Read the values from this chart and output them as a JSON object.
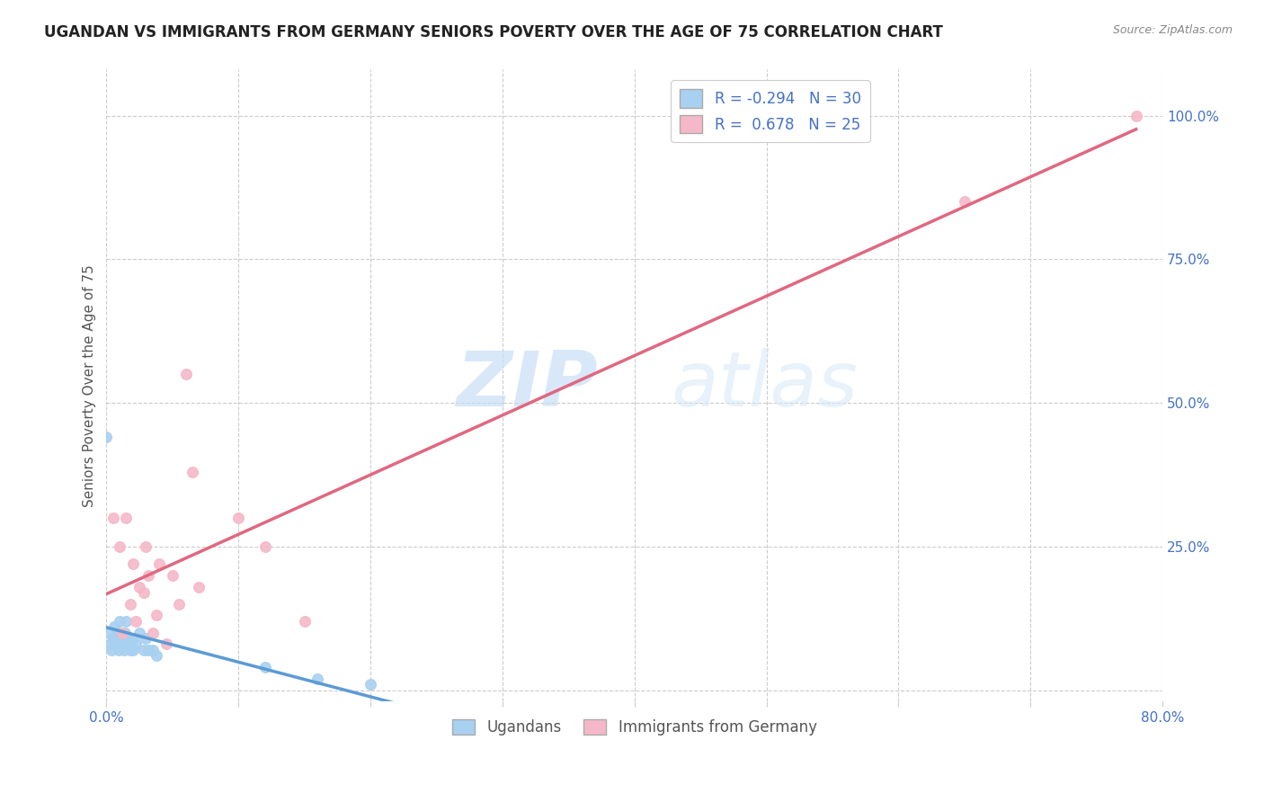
{
  "title": "UGANDAN VS IMMIGRANTS FROM GERMANY SENIORS POVERTY OVER THE AGE OF 75 CORRELATION CHART",
  "source_text": "Source: ZipAtlas.com",
  "ylabel": "Seniors Poverty Over the Age of 75",
  "watermark_zip": "ZIP",
  "watermark_atlas": "atlas",
  "legend_r1": "-0.294",
  "legend_n1": "30",
  "legend_r2": "0.678",
  "legend_n2": "25",
  "ugandan_color": "#a8d0f0",
  "germany_color": "#f5b8c8",
  "ugandan_line_color": "#5b9bd5",
  "germany_line_color": "#e06880",
  "background_color": "#ffffff",
  "grid_color": "#cccccc",
  "xlim": [
    0.0,
    0.8
  ],
  "ylim": [
    -0.02,
    1.08
  ],
  "ugandan_x": [
    0.0,
    0.002,
    0.003,
    0.004,
    0.005,
    0.006,
    0.007,
    0.008,
    0.009,
    0.01,
    0.01,
    0.012,
    0.013,
    0.014,
    0.015,
    0.016,
    0.017,
    0.018,
    0.02,
    0.02,
    0.022,
    0.025,
    0.028,
    0.03,
    0.032,
    0.035,
    0.038,
    0.12,
    0.16,
    0.2
  ],
  "ugandan_y": [
    0.44,
    0.1,
    0.08,
    0.07,
    0.09,
    0.11,
    0.08,
    0.1,
    0.07,
    0.12,
    0.09,
    0.08,
    0.07,
    0.1,
    0.12,
    0.09,
    0.08,
    0.07,
    0.09,
    0.07,
    0.08,
    0.1,
    0.07,
    0.09,
    0.07,
    0.07,
    0.06,
    0.04,
    0.02,
    0.01
  ],
  "germany_x": [
    0.005,
    0.01,
    0.012,
    0.015,
    0.018,
    0.02,
    0.022,
    0.025,
    0.028,
    0.03,
    0.032,
    0.035,
    0.038,
    0.04,
    0.045,
    0.05,
    0.055,
    0.06,
    0.065,
    0.07,
    0.1,
    0.12,
    0.15,
    0.65,
    0.78
  ],
  "germany_y": [
    0.3,
    0.25,
    0.1,
    0.3,
    0.15,
    0.22,
    0.12,
    0.18,
    0.17,
    0.25,
    0.2,
    0.1,
    0.13,
    0.22,
    0.08,
    0.2,
    0.15,
    0.55,
    0.38,
    0.18,
    0.3,
    0.25,
    0.12,
    0.85,
    1.0
  ],
  "title_fontsize": 12,
  "tick_label_color": "#4472c4",
  "tick_label_fontsize": 11,
  "ylabel_fontsize": 11,
  "ylabel_color": "#555555",
  "source_fontsize": 9,
  "source_color": "#888888",
  "legend_fontsize": 12
}
